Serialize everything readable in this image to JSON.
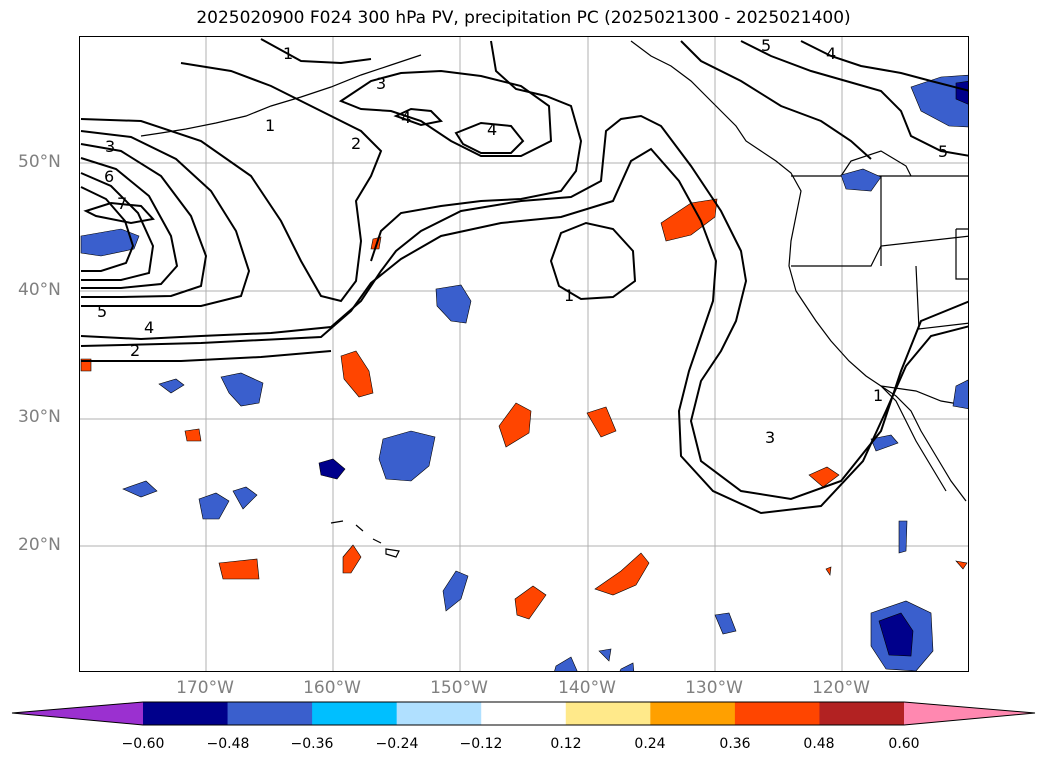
{
  "title": "2025020900 F024 300 hPa PV, precipitation PC (2025021300 - 2025021400)",
  "lat_labels": [
    "50°N",
    "40°N",
    "30°N",
    "20°N"
  ],
  "lon_labels": [
    "170°W",
    "160°W",
    "150°W",
    "140°W",
    "130°W",
    "120°W"
  ],
  "contour_labels": [
    "1",
    "2",
    "3",
    "4",
    "5",
    "6",
    "7",
    "1",
    "2",
    "3",
    "4",
    "4",
    "5",
    "1",
    "3",
    "4",
    "5",
    "1"
  ],
  "colorbar": {
    "ticks": [
      "−0.60",
      "−0.48",
      "−0.36",
      "−0.24",
      "−0.12",
      "0.12",
      "0.24",
      "0.36",
      "0.48",
      "0.60"
    ],
    "colors": [
      "#9b30d0",
      "#00008b",
      "#3a5fcd",
      "#00bfff",
      "#b0e0ff",
      "#ffffff",
      "#ffe98a",
      "#ffa000",
      "#ff4500",
      "#b22222",
      "#ff88b0"
    ]
  }
}
